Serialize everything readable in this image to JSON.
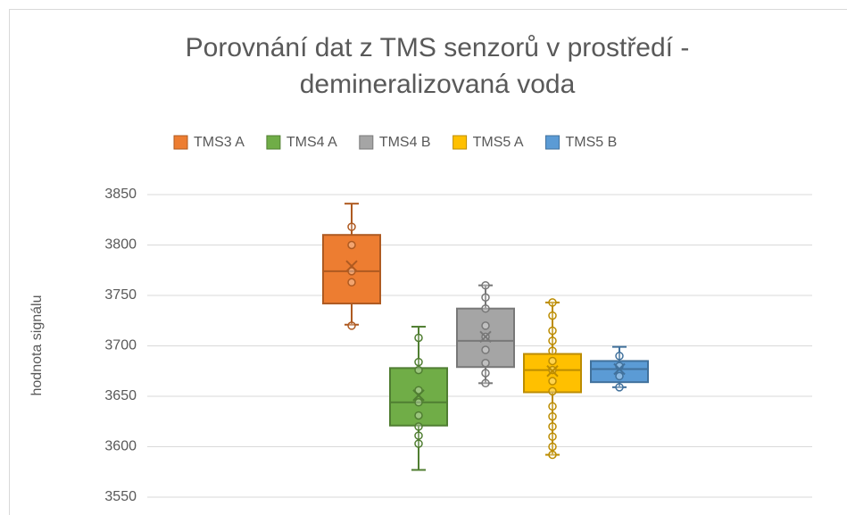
{
  "chart_data": {
    "type": "box",
    "title": [
      "Porovnání dat z TMS senzorů v prostředí -",
      "demineralizovaná voda"
    ],
    "y_label": "hodnota signálu",
    "ylim": [
      3550,
      3850
    ],
    "yticks": [
      3550,
      3600,
      3650,
      3700,
      3750,
      3800,
      3850
    ],
    "grid": true,
    "legend": "top",
    "series": [
      {
        "name": "TMS3 A",
        "color": "#ed7d31",
        "stroke": "#ae5a21",
        "min": 3721,
        "q1": 3742,
        "median": 3774,
        "q3": 3810,
        "max": 3841,
        "mean": 3779,
        "values": [
          3720,
          3763,
          3774,
          3800,
          3818
        ]
      },
      {
        "name": "TMS4 A",
        "color": "#70ad47",
        "stroke": "#507e32",
        "min": 3577,
        "q1": 3621,
        "median": 3644,
        "q3": 3678,
        "max": 3719,
        "mean": 3651,
        "values": [
          3603,
          3611,
          3620,
          3631,
          3644,
          3656,
          3676,
          3684,
          3708
        ]
      },
      {
        "name": "TMS4 B",
        "color": "#a5a5a5",
        "stroke": "#787878",
        "min": 3663,
        "q1": 3679,
        "median": 3705,
        "q3": 3737,
        "max": 3760,
        "mean": 3709,
        "values": [
          3663,
          3673,
          3683,
          3696,
          3709,
          3720,
          3737,
          3748,
          3760
        ]
      },
      {
        "name": "TMS5 A",
        "color": "#ffc000",
        "stroke": "#bc8c00",
        "min": 3592,
        "q1": 3654,
        "median": 3676,
        "q3": 3692,
        "max": 3743,
        "mean": 3675,
        "values": [
          3592,
          3600,
          3610,
          3620,
          3630,
          3640,
          3655,
          3665,
          3676,
          3685,
          3695,
          3705,
          3715,
          3730,
          3743
        ]
      },
      {
        "name": "TMS5 B",
        "color": "#5b9bd5",
        "stroke": "#41719c",
        "min": 3659,
        "q1": 3664,
        "median": 3677,
        "q3": 3685,
        "max": 3699,
        "mean": 3677,
        "values": [
          3659,
          3670,
          3680,
          3690
        ]
      }
    ]
  }
}
